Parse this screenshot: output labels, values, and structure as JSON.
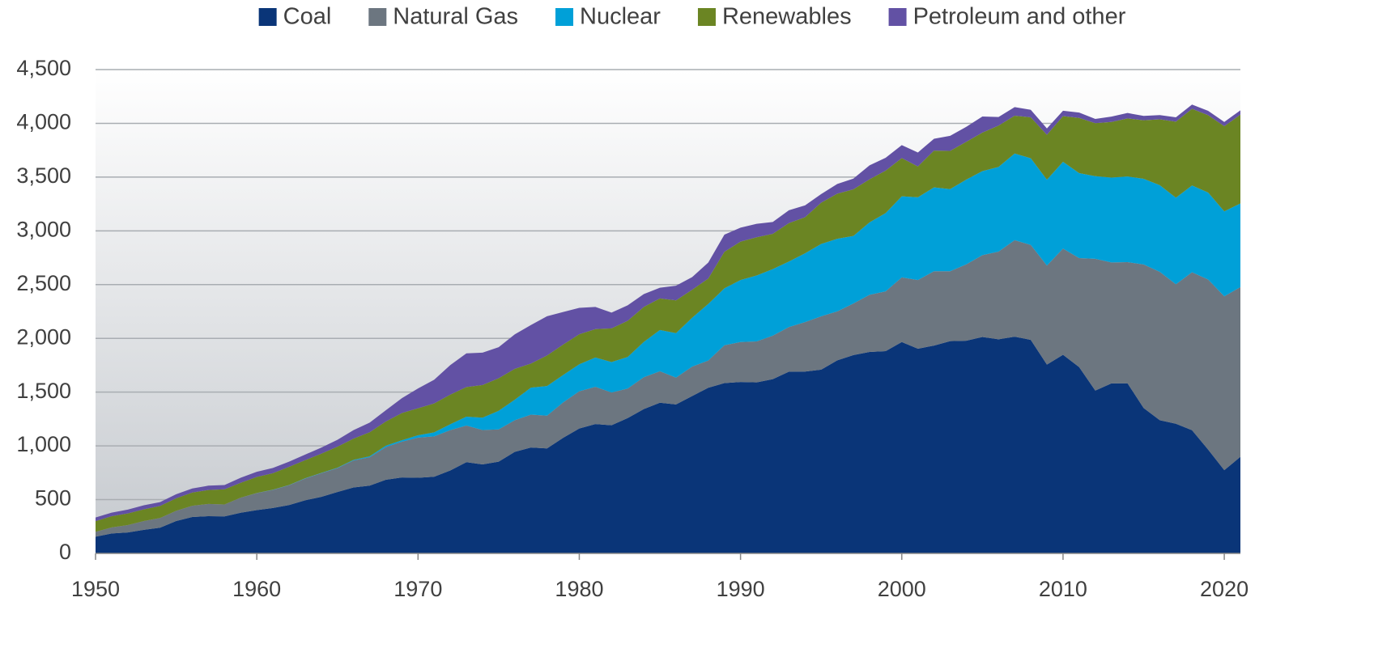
{
  "chart_data": {
    "type": "stacked_area",
    "x": [
      1950,
      1951,
      1952,
      1953,
      1954,
      1955,
      1956,
      1957,
      1958,
      1959,
      1960,
      1961,
      1962,
      1963,
      1964,
      1965,
      1966,
      1967,
      1968,
      1969,
      1970,
      1971,
      1972,
      1973,
      1974,
      1975,
      1976,
      1977,
      1978,
      1979,
      1980,
      1981,
      1982,
      1983,
      1984,
      1985,
      1986,
      1987,
      1988,
      1989,
      1990,
      1991,
      1992,
      1993,
      1994,
      1995,
      1996,
      1997,
      1998,
      1999,
      2000,
      2001,
      2002,
      2003,
      2004,
      2005,
      2006,
      2007,
      2008,
      2009,
      2010,
      2011,
      2012,
      2013,
      2014,
      2015,
      2016,
      2017,
      2018,
      2019,
      2020,
      2021
    ],
    "series": [
      {
        "name": "Coal",
        "color": "#0a3578",
        "values": [
          155,
          185,
          195,
          219,
          239,
          301,
          339,
          346,
          344,
          378,
          403,
          422,
          450,
          494,
          526,
          571,
          613,
          630,
          685,
          706,
          704,
          713,
          771,
          848,
          828,
          853,
          944,
          985,
          976,
          1075,
          1162,
          1203,
          1192,
          1259,
          1342,
          1402,
          1386,
          1464,
          1541,
          1584,
          1594,
          1591,
          1621,
          1690,
          1691,
          1709,
          1796,
          1845,
          1874,
          1881,
          1966,
          1904,
          1933,
          1974,
          1978,
          2013,
          1991,
          2016,
          1986,
          1756,
          1847,
          1733,
          1514,
          1581,
          1582,
          1352,
          1239,
          1206,
          1146,
          965,
          774,
          898
        ]
      },
      {
        "name": "Natural Gas",
        "color": "#6c7680",
        "values": [
          45,
          57,
          68,
          82,
          90,
          95,
          104,
          114,
          111,
          140,
          158,
          169,
          184,
          202,
          220,
          222,
          251,
          265,
          304,
          333,
          373,
          375,
          376,
          341,
          320,
          300,
          295,
          306,
          305,
          329,
          346,
          346,
          305,
          274,
          297,
          292,
          249,
          273,
          253,
          352,
          372,
          381,
          404,
          415,
          460,
          496,
          455,
          479,
          531,
          556,
          601,
          639,
          691,
          650,
          710,
          761,
          816,
          897,
          883,
          921,
          988,
          1014,
          1226,
          1125,
          1127,
          1335,
          1380,
          1297,
          1469,
          1582,
          1617,
          1579
        ]
      },
      {
        "name": "Nuclear",
        "color": "#00a0d8",
        "values": [
          0,
          0,
          0,
          0,
          0,
          0,
          0,
          0,
          0,
          0,
          1,
          2,
          2,
          3,
          3,
          4,
          6,
          8,
          13,
          14,
          22,
          38,
          54,
          83,
          114,
          173,
          191,
          251,
          276,
          255,
          251,
          273,
          283,
          294,
          328,
          384,
          414,
          455,
          527,
          529,
          577,
          613,
          619,
          610,
          640,
          673,
          675,
          629,
          674,
          728,
          754,
          769,
          780,
          764,
          789,
          782,
          787,
          806,
          806,
          799,
          807,
          790,
          769,
          789,
          797,
          797,
          806,
          805,
          807,
          809,
          790,
          778
        ]
      },
      {
        "name": "Renewables",
        "color": "#6b8523",
        "values": [
          100,
          104,
          109,
          109,
          112,
          117,
          123,
          130,
          141,
          139,
          149,
          153,
          169,
          168,
          178,
          195,
          198,
          224,
          225,
          253,
          251,
          269,
          276,
          275,
          304,
          303,
          287,
          224,
          284,
          283,
          279,
          264,
          313,
          336,
          325,
          293,
          304,
          260,
          236,
          340,
          357,
          355,
          328,
          357,
          336,
          384,
          420,
          433,
          400,
          395,
          356,
          287,
          343,
          356,
          351,
          358,
          385,
          352,
          381,
          417,
          425,
          513,
          492,
          518,
          540,
          545,
          612,
          708,
          713,
          720,
          792,
          826
        ]
      },
      {
        "name": "Petroleum and other",
        "color": "#6251a4",
        "values": [
          34,
          33,
          35,
          38,
          36,
          37,
          38,
          40,
          40,
          47,
          48,
          49,
          48,
          52,
          57,
          64,
          79,
          89,
          104,
          138,
          184,
          220,
          274,
          314,
          301,
          289,
          320,
          358,
          365,
          303,
          246,
          206,
          147,
          144,
          120,
          100,
          137,
          118,
          148,
          160,
          130,
          126,
          110,
          120,
          110,
          80,
          90,
          100,
          130,
          120,
          120,
          130,
          110,
          140,
          140,
          150,
          80,
          80,
          70,
          60,
          50,
          50,
          40,
          50,
          50,
          40,
          40,
          40,
          40,
          40,
          40,
          40
        ]
      }
    ],
    "xlim": [
      1950,
      2021
    ],
    "xticks": [
      1950,
      1960,
      1970,
      1980,
      1990,
      2000,
      2010,
      2020
    ],
    "ylim": [
      0,
      4500
    ],
    "yticks": [
      0,
      {
        "value": 500,
        "label": "500"
      },
      {
        "value": 1000,
        "label": "1,000"
      },
      {
        "value": 1500,
        "label": "1,500"
      },
      {
        "value": 2000,
        "label": "2,000"
      },
      {
        "value": 2500,
        "label": "2,500"
      },
      {
        "value": 3000,
        "label": "3,000"
      },
      {
        "value": 3500,
        "label": "3,500"
      },
      {
        "value": 4000,
        "label": "4,000"
      },
      {
        "value": 4500,
        "label": "4,500"
      }
    ],
    "grid": true,
    "legend": "top"
  }
}
